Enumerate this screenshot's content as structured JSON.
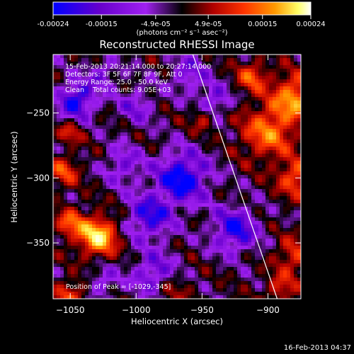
{
  "colorbar": {
    "ticks": [
      "-0.00024",
      "-0.00015",
      "-4.9e-05",
      "4.9e-05",
      "0.00015",
      "0.00024"
    ],
    "tick_values": [
      -0.00024,
      -0.00015,
      -4.9e-05,
      4.9e-05,
      0.00015,
      0.00024
    ],
    "range": [
      -0.00024,
      0.00024
    ],
    "units": "(photons cm⁻² s⁻¹ asec⁻²)"
  },
  "title": "Reconstructed RHESSI Image",
  "info_lines": [
    "15-Feb-2013 20:21:14.000 to 20:27:14.000",
    "Detectors: 3F 5F 6F 7F 8F 9F, Att 0",
    "Energy Range: 25.0 - 50.0 keV",
    "Clean    Total counts: 9.05E+03"
  ],
  "peak_label": "Position of Peak = [-1029,-345]",
  "footer_date": "16-Feb-2013 04:37",
  "chart_data": {
    "type": "heatmap",
    "title": "Reconstructed RHESSI Image",
    "xlabel": "Heliocentric X (arcsec)",
    "ylabel": "Heliocentric Y (arcsec)",
    "xlim": [
      -1063,
      -875
    ],
    "ylim": [
      -393,
      -205
    ],
    "x_ticks": [
      -1050,
      -1000,
      -950,
      -900
    ],
    "y_ticks": [
      -250,
      -300,
      -350
    ],
    "x_tick_labels": [
      "−1050",
      "−1000",
      "−950",
      "−900"
    ],
    "y_tick_labels": [
      "−250",
      "−300",
      "−350"
    ],
    "peak": {
      "x": -1029,
      "y": -345
    },
    "colormap": [
      "#0000ff",
      "#6600cc",
      "#a020f0",
      "#000000",
      "#b00000",
      "#ff3300",
      "#ff9900",
      "#ffff66",
      "#ffffff"
    ],
    "limb_line": [
      [
        -957,
        -205
      ],
      [
        -893,
        -393
      ]
    ],
    "sources": [
      {
        "x": -1029,
        "y": -345,
        "amp": 1.0,
        "w": 10
      },
      {
        "x": -1050,
        "y": -335,
        "amp": 0.55,
        "w": 8
      },
      {
        "x": -880,
        "y": -238,
        "amp": 0.75,
        "w": 12
      },
      {
        "x": -900,
        "y": -265,
        "amp": 0.65,
        "w": 14
      },
      {
        "x": -878,
        "y": -300,
        "amp": 0.6,
        "w": 10
      },
      {
        "x": -912,
        "y": -222,
        "amp": 0.55,
        "w": 8
      },
      {
        "x": -1055,
        "y": -295,
        "amp": 0.5,
        "w": 8
      },
      {
        "x": -1050,
        "y": -265,
        "amp": 0.4,
        "w": 6
      },
      {
        "x": -1050,
        "y": -390,
        "amp": 0.5,
        "w": 8
      },
      {
        "x": -975,
        "y": -385,
        "amp": 0.35,
        "w": 10
      },
      {
        "x": -950,
        "y": -255,
        "amp": 0.35,
        "w": 6
      },
      {
        "x": -880,
        "y": -360,
        "amp": 0.45,
        "w": 10
      },
      {
        "x": -890,
        "y": -385,
        "amp": 0.4,
        "w": 8
      },
      {
        "x": -1045,
        "y": -240,
        "amp": -0.7,
        "w": 10
      },
      {
        "x": -965,
        "y": -300,
        "amp": -0.75,
        "w": 14
      },
      {
        "x": -990,
        "y": -330,
        "amp": -0.6,
        "w": 12
      },
      {
        "x": -985,
        "y": -375,
        "amp": -0.55,
        "w": 12
      },
      {
        "x": -925,
        "y": -340,
        "amp": -0.65,
        "w": 12
      },
      {
        "x": -940,
        "y": -240,
        "amp": -0.45,
        "w": 8
      },
      {
        "x": -1000,
        "y": -245,
        "amp": -0.35,
        "w": 10
      },
      {
        "x": -1010,
        "y": -290,
        "amp": -0.4,
        "w": 10
      },
      {
        "x": -1025,
        "y": -380,
        "amp": -0.35,
        "w": 8
      },
      {
        "x": -1025,
        "y": -220,
        "amp": -0.35,
        "w": 8
      },
      {
        "x": -960,
        "y": -220,
        "amp": -0.4,
        "w": 10
      }
    ]
  }
}
